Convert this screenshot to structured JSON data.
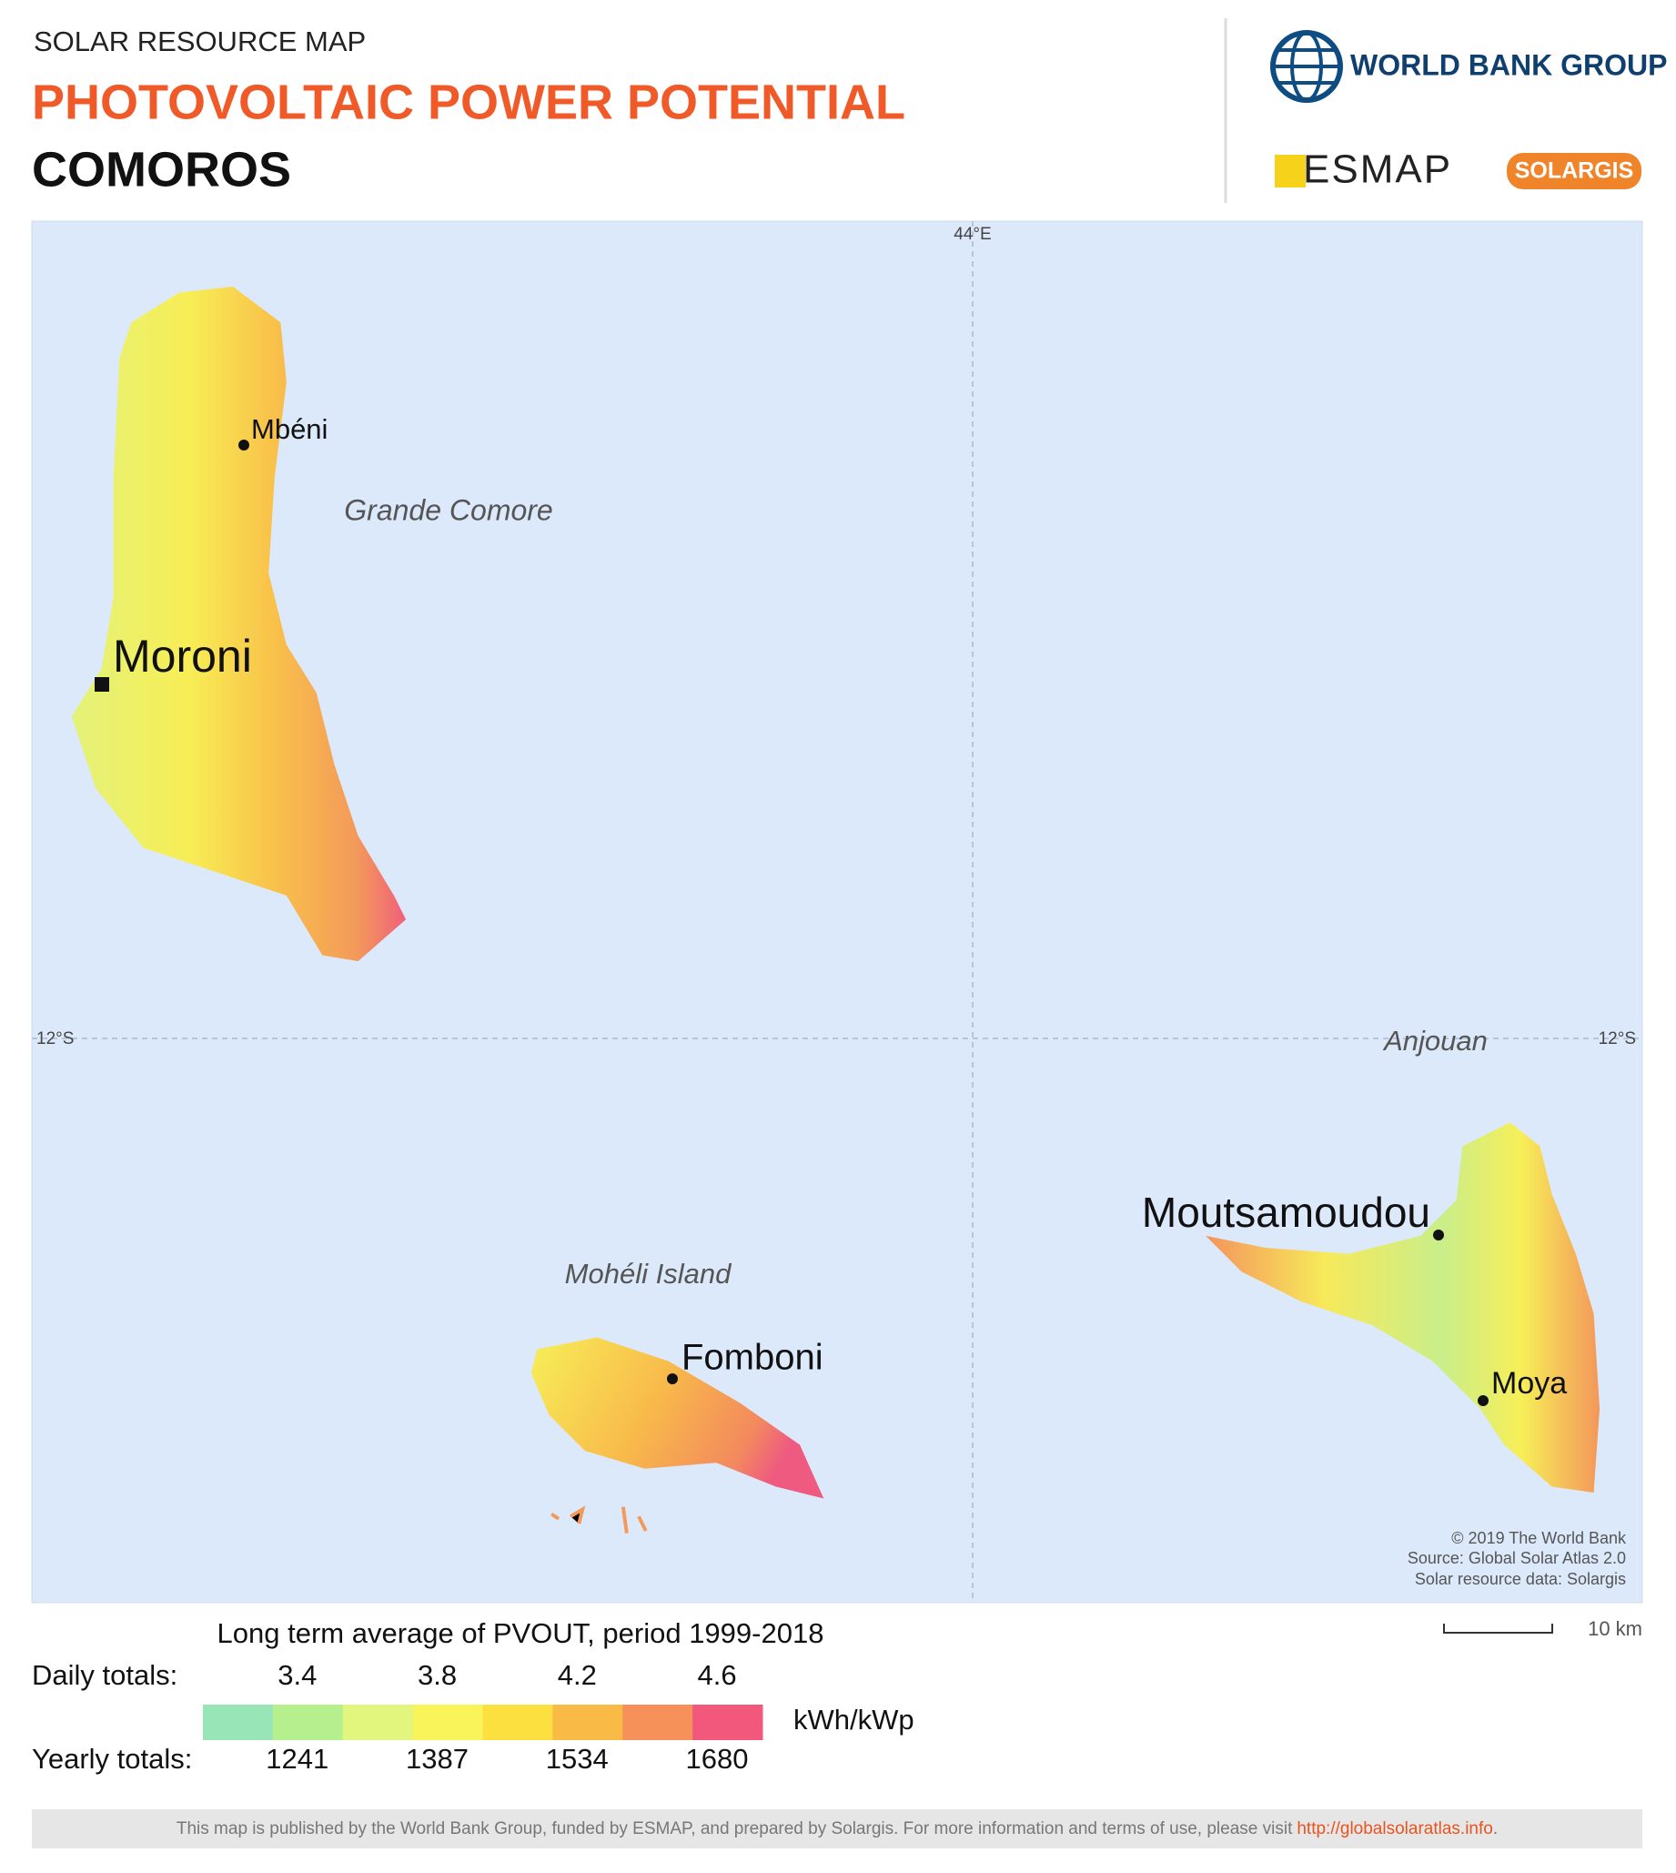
{
  "header": {
    "subtitle": "SOLAR RESOURCE MAP",
    "title": "PHOTOVOLTAIC POWER POTENTIAL",
    "country": "COMOROS"
  },
  "logos": {
    "world_bank": "WORLD BANK GROUP",
    "esmap": "ESMAP",
    "solargis": "SOLARGIS"
  },
  "map": {
    "graticule": {
      "longitude": "44°E",
      "latitude": "12°S"
    },
    "places": [
      "Mbéni",
      "Grande Comore",
      "Moroni",
      "Anjouan",
      "Moutsamoudou",
      "Mohéli Island",
      "Fomboni",
      "Moya"
    ],
    "credits": [
      "© 2019 The World Bank",
      "Source: Global Solar Atlas 2.0",
      "Solar resource data: Solargis"
    ]
  },
  "legend": {
    "title": "Long term average of PVOUT, period 1999-2018",
    "daily_label": "Daily totals:",
    "daily_values": [
      3.4,
      3.8,
      4.2,
      4.6
    ],
    "yearly_label": "Yearly totals:",
    "yearly_values": [
      1241,
      1387,
      1534,
      1680
    ],
    "unit": "kWh/kWp",
    "colors": [
      "#98e6b8",
      "#b6ef8e",
      "#e2f57c",
      "#f8f45a",
      "#fbe040",
      "#f9ba46",
      "#f6915a",
      "#f2587c"
    ]
  },
  "scale_bar": {
    "label": "10 km"
  },
  "footer": {
    "text": "This map is published by the World Bank Group, funded by ESMAP, and prepared by Solargis. For more information and terms of use, please visit",
    "link": "http://globalsolaratlas.info",
    "end": "."
  }
}
